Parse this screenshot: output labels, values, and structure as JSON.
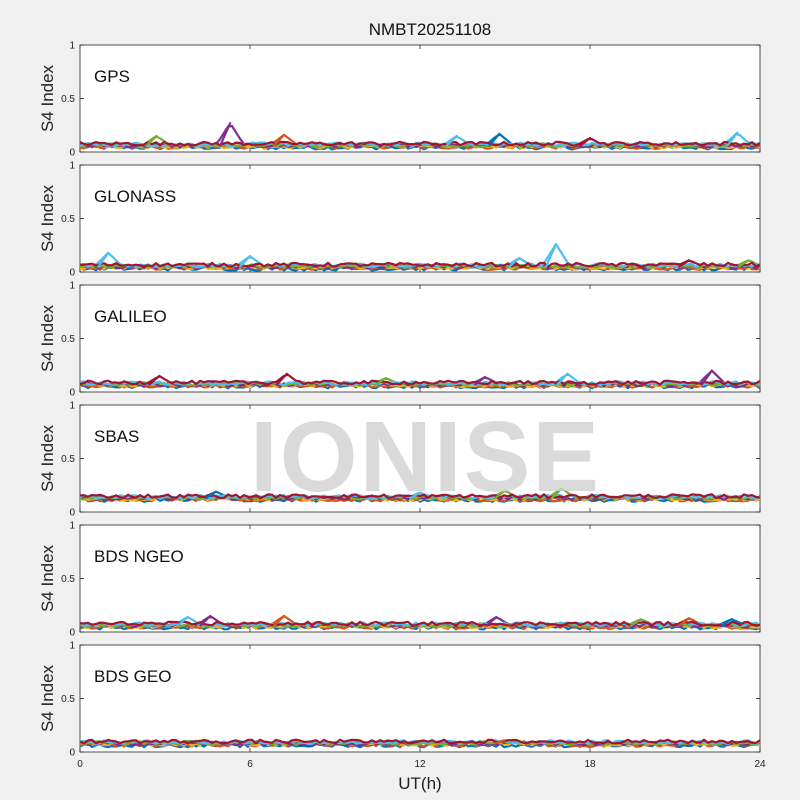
{
  "figure_title": "NMBT20251108",
  "watermark": "IONISE",
  "chart_data": {
    "type": "line",
    "title": "NMBT20251108",
    "xlabel": "UT(h)",
    "xlim": [
      0,
      24
    ],
    "xticks": [
      "0",
      "6",
      "12",
      "18",
      "24"
    ],
    "shared_x": true,
    "palette": [
      "#0072BD",
      "#D95319",
      "#EDB120",
      "#7E2F8E",
      "#77AC30",
      "#4DBEEE",
      "#A2142F"
    ],
    "panels": [
      {
        "label": "GPS",
        "ylabel": "S4 Index",
        "ylim": [
          0,
          1
        ],
        "yticks": [
          "0",
          "0.5",
          "1"
        ],
        "baseline": 0.06,
        "excursions": [
          {
            "x": 5.3,
            "y": 0.27,
            "series": 3
          },
          {
            "x": 2.7,
            "y": 0.15,
            "series": 4
          },
          {
            "x": 14.8,
            "y": 0.17,
            "series": 0
          },
          {
            "x": 7.2,
            "y": 0.16,
            "series": 1
          },
          {
            "x": 23.2,
            "y": 0.18,
            "series": 5
          },
          {
            "x": 13.3,
            "y": 0.15,
            "series": 5
          },
          {
            "x": 18.0,
            "y": 0.13,
            "series": 6
          }
        ]
      },
      {
        "label": "GLONASS",
        "ylabel": "S4 Index",
        "ylim": [
          0,
          1
        ],
        "yticks": [
          "0",
          "0.5",
          "1"
        ],
        "baseline": 0.05,
        "excursions": [
          {
            "x": 16.8,
            "y": 0.26,
            "series": 5
          },
          {
            "x": 6.0,
            "y": 0.15,
            "series": 5
          },
          {
            "x": 1.0,
            "y": 0.18,
            "series": 5
          },
          {
            "x": 15.5,
            "y": 0.13,
            "series": 5
          },
          {
            "x": 23.6,
            "y": 0.11,
            "series": 4
          },
          {
            "x": 21.5,
            "y": 0.11,
            "series": 6
          }
        ]
      },
      {
        "label": "GALILEO",
        "ylabel": "S4 Index",
        "ylim": [
          0,
          1
        ],
        "yticks": [
          "0",
          "0.5",
          "1"
        ],
        "baseline": 0.07,
        "excursions": [
          {
            "x": 22.3,
            "y": 0.2,
            "series": 3
          },
          {
            "x": 7.3,
            "y": 0.17,
            "series": 6
          },
          {
            "x": 17.2,
            "y": 0.17,
            "series": 5
          },
          {
            "x": 2.8,
            "y": 0.15,
            "series": 6
          },
          {
            "x": 14.3,
            "y": 0.14,
            "series": 3
          },
          {
            "x": 10.8,
            "y": 0.13,
            "series": 4
          }
        ]
      },
      {
        "label": "SBAS",
        "ylabel": "S4 Index",
        "ylim": [
          0,
          1
        ],
        "yticks": [
          "0",
          "0.5",
          "1"
        ],
        "baseline": 0.13,
        "excursions": [
          {
            "x": 17.0,
            "y": 0.22,
            "series": 4
          },
          {
            "x": 15.0,
            "y": 0.2,
            "series": 4
          },
          {
            "x": 4.8,
            "y": 0.19,
            "series": 0
          },
          {
            "x": 12.0,
            "y": 0.18,
            "series": 5
          }
        ]
      },
      {
        "label": "BDS NGEO",
        "ylabel": "S4 Index",
        "ylim": [
          0,
          1
        ],
        "yticks": [
          "0",
          "0.5",
          "1"
        ],
        "baseline": 0.06,
        "excursions": [
          {
            "x": 4.6,
            "y": 0.15,
            "series": 3
          },
          {
            "x": 7.2,
            "y": 0.15,
            "series": 1
          },
          {
            "x": 3.8,
            "y": 0.14,
            "series": 5
          },
          {
            "x": 14.7,
            "y": 0.14,
            "series": 3
          },
          {
            "x": 21.5,
            "y": 0.13,
            "series": 1
          },
          {
            "x": 23.0,
            "y": 0.12,
            "series": 0
          },
          {
            "x": 19.8,
            "y": 0.12,
            "series": 4
          }
        ]
      },
      {
        "label": "BDS GEO",
        "ylabel": "S4 Index",
        "ylim": [
          0,
          1
        ],
        "yticks": [
          "0",
          "0.5",
          "1"
        ],
        "baseline": 0.08,
        "excursions": [
          {
            "x": 15.0,
            "y": 0.11,
            "series": 1
          },
          {
            "x": 12.0,
            "y": 0.1,
            "series": 6
          }
        ]
      }
    ]
  }
}
